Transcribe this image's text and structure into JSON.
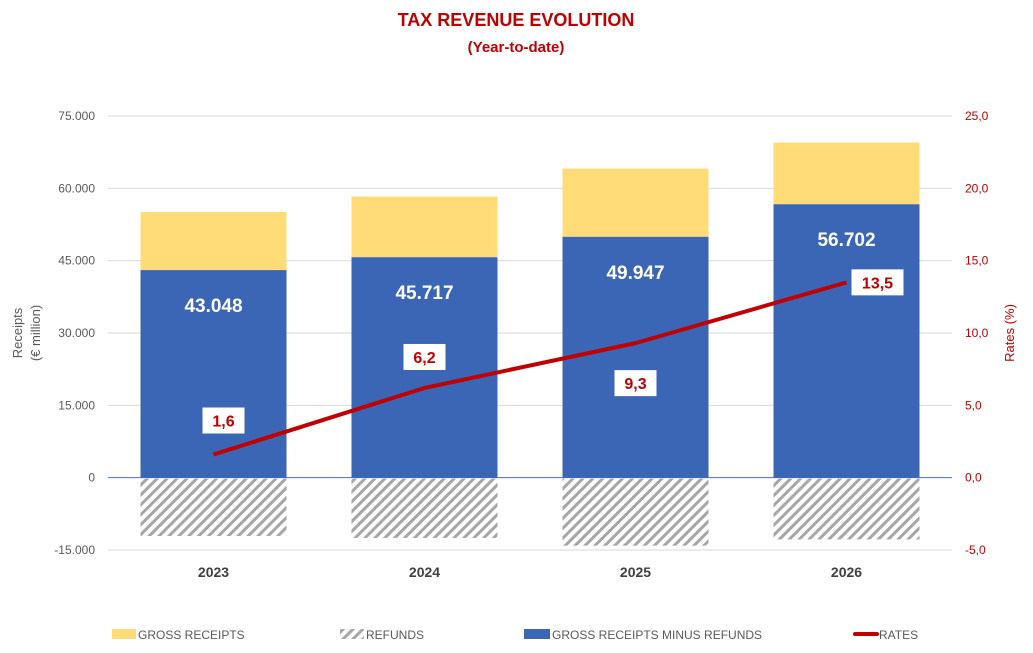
{
  "chart_data": {
    "type": "bar",
    "title": "TAX REVENUE EVOLUTION",
    "subtitle": "(Year-to-date)",
    "categories": [
      "2023",
      "2024",
      "2025",
      "2026"
    ],
    "y_left": {
      "label_line1": "Receipts",
      "label_line2": "(€ million)",
      "range": [
        -15000,
        75000
      ],
      "ticks": [
        -15000,
        0,
        15000,
        30000,
        45000,
        60000,
        75000
      ],
      "tick_labels": [
        "-15.000",
        "0",
        "15.000",
        "30.000",
        "45.000",
        "60.000",
        "75.000"
      ]
    },
    "y_right": {
      "label": "Rates (%)",
      "range": [
        -5,
        25
      ],
      "ticks": [
        -5,
        0,
        5,
        10,
        15,
        20,
        25
      ],
      "tick_labels": [
        "-5,0",
        "0,0",
        "5,0",
        "10,0",
        "15,0",
        "20,0",
        "25,0"
      ]
    },
    "grid": true,
    "legend_position": "bottom",
    "series": [
      {
        "name": "GROSS RECEIPTS",
        "kind": "bar",
        "color": "#FFDC78",
        "values": [
          55100,
          58300,
          64100,
          69500
        ]
      },
      {
        "name": "REFUNDS",
        "kind": "bar-hatched",
        "color": "#A6A6A6",
        "values": [
          -12100,
          -12500,
          -14100,
          -12800
        ]
      },
      {
        "name": "GROSS RECEIPTS MINUS REFUNDS",
        "kind": "bar",
        "color": "#3A66B5",
        "values": [
          43048,
          45717,
          49947,
          56702
        ],
        "data_labels": [
          "43.048",
          "45.717",
          "49.947",
          "56.702"
        ]
      },
      {
        "name": "RATES",
        "kind": "line",
        "axis": "right",
        "color": "#C00000",
        "values": [
          1.6,
          6.2,
          9.3,
          13.5
        ],
        "data_labels": [
          "1,6",
          "6,2",
          "9,3",
          "13,5"
        ]
      }
    ]
  }
}
